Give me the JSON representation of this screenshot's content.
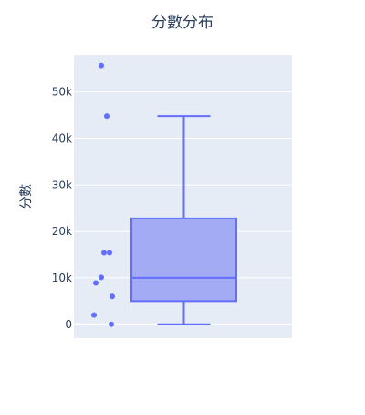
{
  "chart_data": {
    "type": "box",
    "title": "分數分布",
    "xlabel": "",
    "ylabel": "分數",
    "ylim": [
      -3000,
      58000
    ],
    "yticks": [
      0,
      10000,
      20000,
      30000,
      40000,
      50000
    ],
    "yticklabels": [
      "0",
      "10k",
      "20k",
      "30k",
      "40k",
      "50k"
    ],
    "grid": true,
    "series": [
      {
        "min": 0,
        "q1": 5000,
        "median": 10000,
        "q3": 22800,
        "max": 44800,
        "points": [
          55700,
          44800,
          15400,
          15400,
          10100,
          8900,
          6000,
          2000,
          0
        ]
      }
    ],
    "colors": {
      "plot_bg": "#e5ecf6",
      "grid": "#ffffff",
      "box_fill": "#a3abf5",
      "box_line": "#636efa",
      "text": "#2a3f5f"
    }
  }
}
